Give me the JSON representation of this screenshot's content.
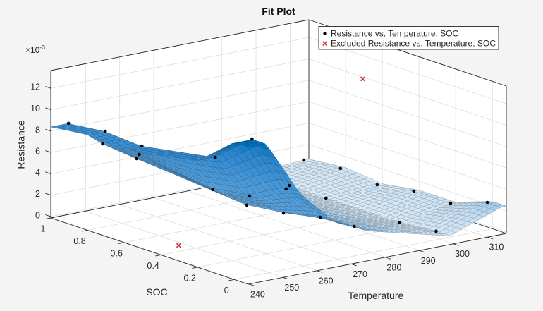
{
  "chart_data": {
    "type": "surface",
    "title": "Fit Plot",
    "xlabel": "Temperature",
    "ylabel": "SOC",
    "zlabel": "Resistance",
    "xlim": [
      239.8,
      315.5
    ],
    "ylim": [
      -0.076,
      1.0
    ],
    "zlim": [
      -0.00013,
      0.01366
    ],
    "xticks": [
      240,
      250,
      260,
      270,
      280,
      290,
      300,
      310
    ],
    "xtick_labels": [
      "240",
      "250",
      "260",
      "270",
      "280",
      "290",
      "300",
      "310"
    ],
    "yticks": [
      0,
      0.2,
      0.4,
      0.6,
      0.8,
      1
    ],
    "ytick_labels": [
      "0",
      "0.2",
      "0.4",
      "0.6",
      "0.8",
      "1"
    ],
    "zticks": [
      0,
      0.002,
      0.004,
      0.006,
      0.008,
      0.01,
      0.012
    ],
    "ztick_labels": [
      "0",
      "2",
      "4",
      "6",
      "8",
      "10",
      "12"
    ],
    "z_exponent_base": "×10",
    "z_exponent_power": "-3",
    "grid": true,
    "legend": {
      "location": "top-right",
      "entries": [
        {
          "label": "Resistance vs. Temperature, SOC",
          "marker": "dot"
        },
        {
          "label": "Excluded Resistance vs. Temperature, SOC",
          "marker": "x"
        }
      ]
    },
    "columns": [
      "Temperature",
      "SOC",
      "Resistance"
    ],
    "series": [
      {
        "name": "Resistance vs. Temperature, SOC",
        "marker": "dot",
        "color": "#000000",
        "points": [
          [
            245,
            1.0,
            0.00839
          ],
          [
            245,
            0.8,
            0.00881
          ],
          [
            245,
            0.6,
            0.00858
          ],
          [
            245,
            0.2,
            0.00982
          ],
          [
            245,
            0.0,
            0.0127
          ],
          [
            255,
            1.0,
            0.00584
          ],
          [
            255,
            0.8,
            0.00601
          ],
          [
            255,
            0.4,
            0.00502
          ],
          [
            255,
            0.2,
            0.00557
          ],
          [
            255,
            0.0,
            0.00739
          ],
          [
            265,
            1.0,
            0.00383
          ],
          [
            265,
            0.4,
            0.00294
          ],
          [
            265,
            0.2,
            0.00336
          ],
          [
            265,
            0.0,
            0.00412
          ],
          [
            275,
            0.0,
            0.00264
          ],
          [
            299,
            0.8,
            0.00034
          ],
          [
            299,
            0.6,
            0.00031
          ],
          [
            299,
            0.2,
            0.00036
          ],
          [
            299,
            0.0,
            0.00067
          ],
          [
            314,
            1.0,
            0.00062
          ],
          [
            314,
            0.8,
            0.00099
          ],
          [
            314,
            0.6,
            0.00062
          ],
          [
            314,
            0.4,
            0.00118
          ],
          [
            314,
            0.2,
            0.0012
          ],
          [
            314,
            0.0,
            0.00243
          ]
        ]
      },
      {
        "name": "Excluded Resistance vs. Temperature, SOC",
        "marker": "x",
        "color": "#cc3333",
        "points": [
          [
            245,
            0.4,
            0.00043
          ],
          [
            299,
            0.4,
            0.01262
          ]
        ]
      }
    ],
    "surface": {
      "method": "linear interpolation of included points",
      "colormap": [
        {
          "at": 0.0,
          "color": "#d9eaf7"
        },
        {
          "at": 0.12,
          "color": "#c3dcf1"
        },
        {
          "at": 0.2,
          "color": "#90c1e9"
        },
        {
          "at": 0.27,
          "color": "#60a4dc"
        },
        {
          "at": 0.6,
          "color": "#4596d6"
        },
        {
          "at": 0.85,
          "color": "#2a84cc"
        },
        {
          "at": 1.0,
          "color": "#0072bd"
        }
      ]
    }
  }
}
